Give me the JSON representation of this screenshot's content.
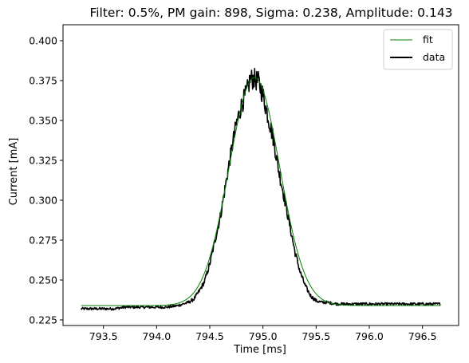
{
  "chart_data": {
    "type": "line",
    "title": "Filter: 0.5%, PM gain: 898, Sigma: 0.238, Amplitude: 0.143",
    "xlabel": "Time [ms]",
    "ylabel": "Current [mA]",
    "xlim": [
      793.12,
      796.84
    ],
    "ylim": [
      0.2215,
      0.41
    ],
    "xticks": [
      793.5,
      794.0,
      794.5,
      795.0,
      795.5,
      796.0,
      796.5
    ],
    "xtick_labels": [
      "793.5",
      "794.0",
      "794.5",
      "795.0",
      "795.5",
      "796.0",
      "796.5"
    ],
    "yticks": [
      0.225,
      0.25,
      0.275,
      0.3,
      0.325,
      0.35,
      0.375,
      0.4
    ],
    "ytick_labels": [
      "0.225",
      "0.250",
      "0.275",
      "0.300",
      "0.325",
      "0.350",
      "0.375",
      "0.400"
    ],
    "grid": false,
    "legend": "top-right",
    "series": [
      {
        "name": "fit",
        "color": "#008000",
        "model": "gaussian",
        "baseline": 0.234,
        "amplitude": 0.143,
        "center": 794.92,
        "sigma": 0.238,
        "x_start": 793.29,
        "x_end": 796.67
      },
      {
        "name": "data",
        "color": "#000000",
        "x": [
          793.29,
          793.4,
          793.5,
          793.6,
          793.7,
          793.8,
          793.9,
          794.0,
          794.1,
          794.2,
          794.3,
          794.35,
          794.4,
          794.45,
          794.5,
          794.55,
          794.6,
          794.65,
          794.7,
          794.75,
          794.8,
          794.85,
          794.88,
          794.92,
          794.96,
          795.0,
          795.05,
          795.1,
          795.15,
          795.2,
          795.25,
          795.3,
          795.35,
          795.4,
          795.45,
          795.5,
          795.55,
          795.6,
          795.7,
          795.8,
          795.9,
          796.0,
          796.1,
          796.2,
          796.3,
          796.4,
          796.5,
          796.67
        ],
        "y": [
          0.232,
          0.232,
          0.232,
          0.232,
          0.233,
          0.233,
          0.233,
          0.233,
          0.233,
          0.234,
          0.236,
          0.238,
          0.243,
          0.249,
          0.26,
          0.275,
          0.29,
          0.31,
          0.33,
          0.348,
          0.36,
          0.368,
          0.376,
          0.376,
          0.374,
          0.366,
          0.352,
          0.338,
          0.318,
          0.302,
          0.285,
          0.268,
          0.255,
          0.246,
          0.24,
          0.237,
          0.236,
          0.236,
          0.235,
          0.235,
          0.235,
          0.235,
          0.235,
          0.235,
          0.235,
          0.235,
          0.235,
          0.235
        ],
        "noise_amplitude": 0.006
      }
    ]
  }
}
